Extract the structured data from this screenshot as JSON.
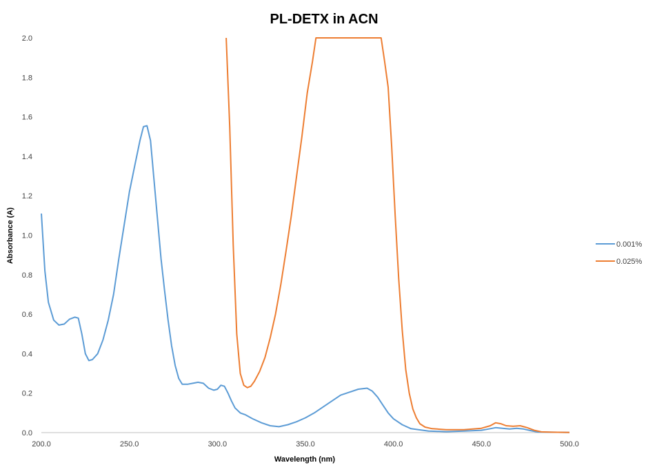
{
  "chart_data": {
    "type": "line",
    "title": "PL-DETX in ACN",
    "xlabel": "Wavelength (nm)",
    "ylabel": "Absorbance (A)",
    "xlim": [
      200,
      500
    ],
    "ylim": [
      0,
      2.0
    ],
    "x_ticks": [
      200,
      250,
      300,
      350,
      400,
      450,
      500
    ],
    "x_tick_labels": [
      "200.0",
      "250.0",
      "300.0",
      "350.0",
      "400.0",
      "450.0",
      "500.0"
    ],
    "y_ticks": [
      0,
      0.2,
      0.4,
      0.6,
      0.8,
      1.0,
      1.2,
      1.4,
      1.6,
      1.8,
      2.0
    ],
    "y_tick_labels": [
      "0.0",
      "0.2",
      "0.4",
      "0.6",
      "0.8",
      "1.0",
      "1.2",
      "1.4",
      "1.6",
      "1.8",
      "2.0"
    ],
    "grid": false,
    "legend_position": "right",
    "series": [
      {
        "name": "0.001%",
        "color": "#5B9BD5",
        "points": [
          [
            200,
            1.11
          ],
          [
            202,
            0.82
          ],
          [
            204,
            0.66
          ],
          [
            207,
            0.57
          ],
          [
            210,
            0.545
          ],
          [
            213,
            0.55
          ],
          [
            216,
            0.575
          ],
          [
            219,
            0.585
          ],
          [
            221,
            0.58
          ],
          [
            223,
            0.5
          ],
          [
            225,
            0.4
          ],
          [
            227,
            0.365
          ],
          [
            229,
            0.37
          ],
          [
            232,
            0.4
          ],
          [
            235,
            0.47
          ],
          [
            238,
            0.57
          ],
          [
            241,
            0.7
          ],
          [
            244,
            0.88
          ],
          [
            247,
            1.05
          ],
          [
            250,
            1.22
          ],
          [
            253,
            1.35
          ],
          [
            256,
            1.48
          ],
          [
            258,
            1.55
          ],
          [
            260,
            1.555
          ],
          [
            262,
            1.48
          ],
          [
            264,
            1.28
          ],
          [
            266,
            1.08
          ],
          [
            268,
            0.88
          ],
          [
            270,
            0.72
          ],
          [
            272,
            0.57
          ],
          [
            274,
            0.44
          ],
          [
            276,
            0.34
          ],
          [
            278,
            0.275
          ],
          [
            280,
            0.245
          ],
          [
            283,
            0.245
          ],
          [
            286,
            0.25
          ],
          [
            289,
            0.255
          ],
          [
            292,
            0.25
          ],
          [
            295,
            0.225
          ],
          [
            298,
            0.215
          ],
          [
            300,
            0.22
          ],
          [
            302,
            0.24
          ],
          [
            304,
            0.235
          ],
          [
            306,
            0.2
          ],
          [
            308,
            0.16
          ],
          [
            310,
            0.125
          ],
          [
            313,
            0.1
          ],
          [
            316,
            0.09
          ],
          [
            320,
            0.07
          ],
          [
            325,
            0.05
          ],
          [
            330,
            0.035
          ],
          [
            335,
            0.03
          ],
          [
            340,
            0.04
          ],
          [
            345,
            0.055
          ],
          [
            350,
            0.075
          ],
          [
            355,
            0.1
          ],
          [
            360,
            0.13
          ],
          [
            365,
            0.16
          ],
          [
            370,
            0.19
          ],
          [
            375,
            0.205
          ],
          [
            380,
            0.22
          ],
          [
            385,
            0.225
          ],
          [
            388,
            0.21
          ],
          [
            391,
            0.18
          ],
          [
            394,
            0.14
          ],
          [
            397,
            0.1
          ],
          [
            400,
            0.07
          ],
          [
            405,
            0.04
          ],
          [
            410,
            0.02
          ],
          [
            420,
            0.008
          ],
          [
            430,
            0.005
          ],
          [
            440,
            0.008
          ],
          [
            450,
            0.012
          ],
          [
            455,
            0.02
          ],
          [
            458,
            0.025
          ],
          [
            462,
            0.022
          ],
          [
            466,
            0.018
          ],
          [
            470,
            0.022
          ],
          [
            474,
            0.018
          ],
          [
            478,
            0.01
          ],
          [
            482,
            0.003
          ],
          [
            490,
            0.002
          ],
          [
            500,
            0.001
          ]
        ]
      },
      {
        "name": "0.025%",
        "color": "#ED7D31",
        "points": [
          [
            305,
            2.0
          ],
          [
            307,
            1.55
          ],
          [
            309,
            0.95
          ],
          [
            311,
            0.5
          ],
          [
            313,
            0.3
          ],
          [
            315,
            0.24
          ],
          [
            317,
            0.228
          ],
          [
            319,
            0.235
          ],
          [
            321,
            0.26
          ],
          [
            324,
            0.31
          ],
          [
            327,
            0.38
          ],
          [
            330,
            0.48
          ],
          [
            333,
            0.6
          ],
          [
            336,
            0.75
          ],
          [
            339,
            0.92
          ],
          [
            342,
            1.1
          ],
          [
            345,
            1.3
          ],
          [
            348,
            1.5
          ],
          [
            351,
            1.72
          ],
          [
            354,
            1.88
          ],
          [
            356,
            2.0
          ],
          [
            393,
            2.0
          ],
          [
            395,
            1.88
          ],
          [
            397,
            1.75
          ],
          [
            399,
            1.45
          ],
          [
            401,
            1.1
          ],
          [
            403,
            0.78
          ],
          [
            405,
            0.52
          ],
          [
            407,
            0.32
          ],
          [
            409,
            0.2
          ],
          [
            411,
            0.12
          ],
          [
            413,
            0.075
          ],
          [
            415,
            0.045
          ],
          [
            418,
            0.028
          ],
          [
            422,
            0.02
          ],
          [
            430,
            0.015
          ],
          [
            440,
            0.015
          ],
          [
            450,
            0.022
          ],
          [
            455,
            0.035
          ],
          [
            458,
            0.05
          ],
          [
            461,
            0.045
          ],
          [
            464,
            0.035
          ],
          [
            468,
            0.032
          ],
          [
            472,
            0.035
          ],
          [
            476,
            0.025
          ],
          [
            480,
            0.012
          ],
          [
            484,
            0.004
          ],
          [
            490,
            0.002
          ],
          [
            500,
            0.001
          ]
        ]
      }
    ]
  }
}
